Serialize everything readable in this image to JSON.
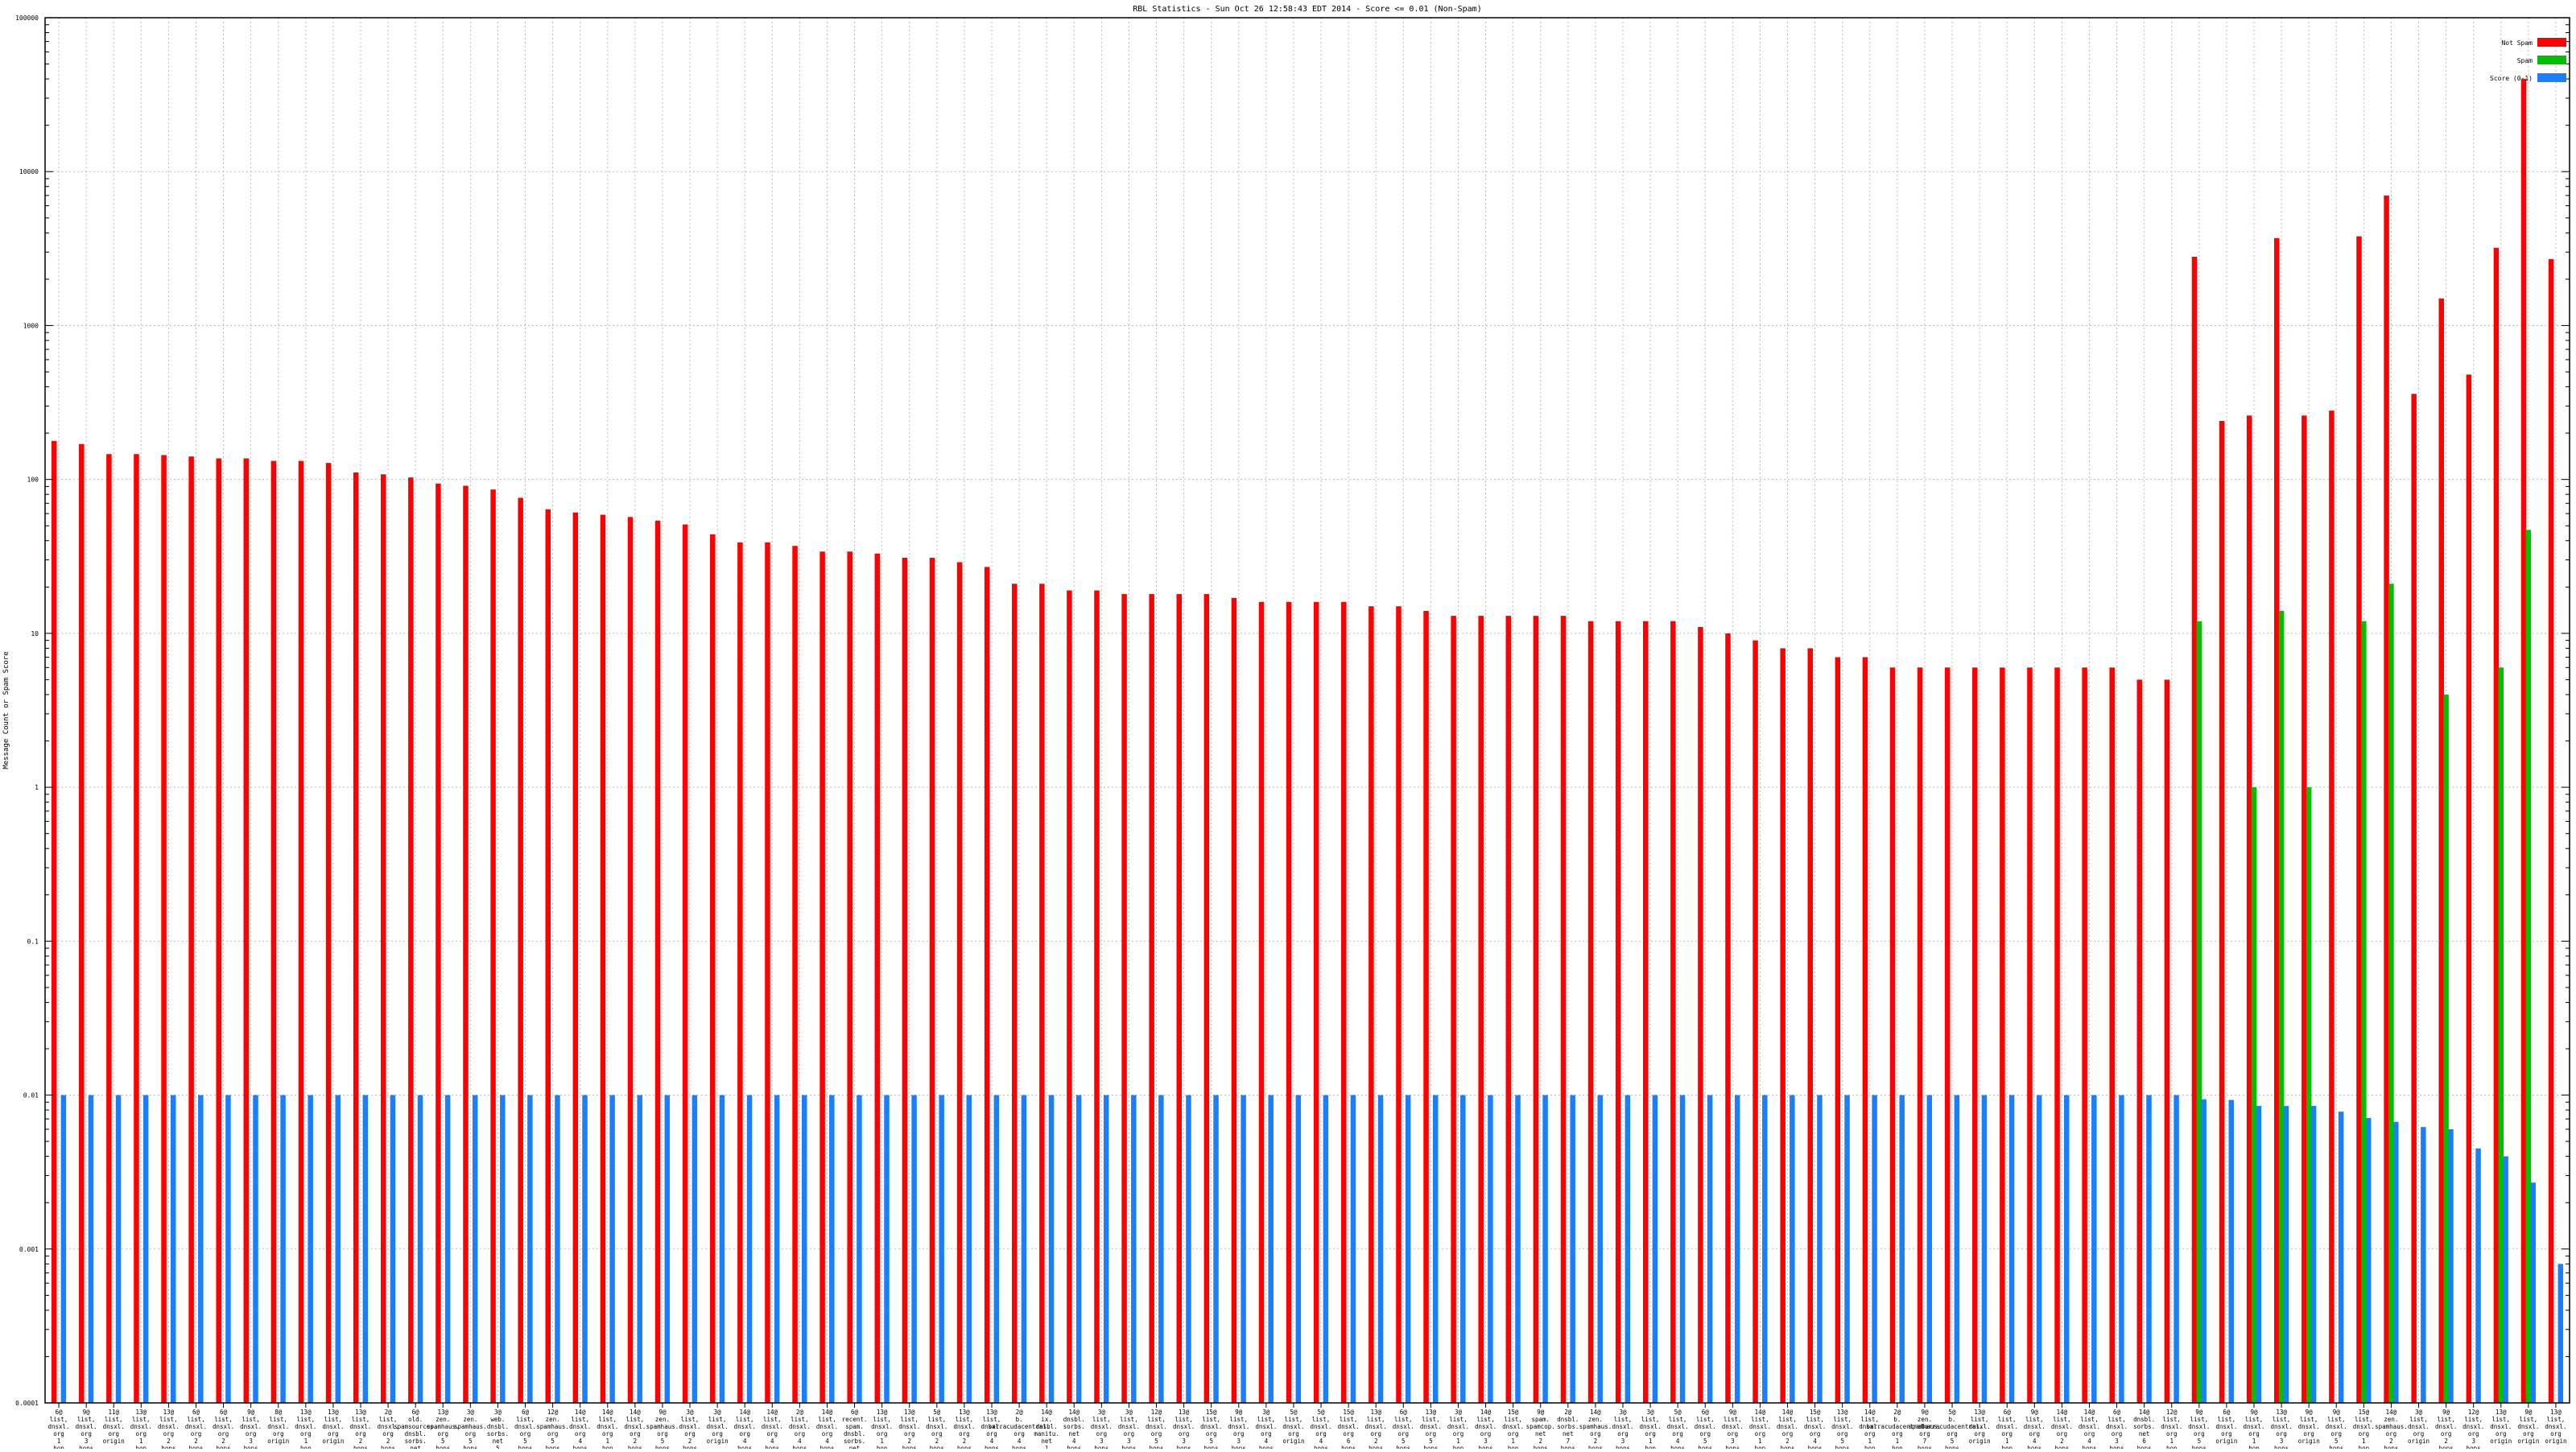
{
  "chart_data": {
    "type": "bar",
    "title": "RBL Statistics - Sun Oct 26 12:58:43 EDT 2014 - Score <= 0.01 (Non-Spam)",
    "xlabel": "",
    "ylabel": "Message Count or Spam Score",
    "yscale": "log",
    "ylim": [
      0.0001,
      100000
    ],
    "yticks": [
      "0.0001",
      "0.001",
      "0.01",
      "0.1",
      "1",
      "10",
      "100",
      "1000",
      "10000",
      "100000"
    ],
    "grid": true,
    "legend_position": "top-right",
    "series": [
      {
        "name": "Not Spam",
        "color": "#ff0000",
        "values": [
          178,
          170,
          146,
          146,
          144,
          141,
          137,
          137,
          132,
          132,
          128,
          111,
          108,
          103,
          94,
          91,
          86,
          76,
          64,
          61,
          59,
          57,
          54,
          51,
          44,
          39,
          39,
          37,
          34,
          34,
          33,
          31,
          31,
          29,
          27,
          21,
          21,
          19,
          19,
          18,
          18,
          18,
          18,
          17,
          16,
          16,
          16,
          16,
          15,
          15,
          14,
          13,
          13,
          13,
          13,
          13,
          12,
          12,
          12,
          12,
          11,
          10,
          9,
          8,
          8,
          7,
          7,
          6,
          6,
          6,
          6,
          6,
          6,
          6,
          6,
          6,
          5,
          5,
          2800,
          240,
          260,
          3700,
          260,
          280,
          3800,
          7000,
          360,
          1500,
          480,
          3200,
          40000,
          2700
        ]
      },
      {
        "name": "Spam",
        "color": "#00c000",
        "values": [
          0,
          0,
          0,
          0,
          0,
          0,
          0,
          0,
          0,
          0,
          0,
          0,
          0,
          0,
          0,
          0,
          0,
          0,
          0,
          0,
          0,
          0,
          0,
          0,
          0,
          0,
          0,
          0,
          0,
          0,
          0,
          0,
          0,
          0,
          0,
          0,
          0,
          0,
          0,
          0,
          0,
          0,
          0,
          0,
          0,
          0,
          0,
          0,
          0,
          0,
          0,
          0,
          0,
          0,
          0,
          0,
          0,
          0,
          0,
          0,
          0,
          0,
          0,
          0,
          0,
          0,
          0,
          0,
          0,
          0,
          0,
          0,
          0,
          0,
          0,
          0,
          0,
          0,
          12,
          0,
          1,
          14,
          1,
          0,
          12,
          21,
          0,
          4,
          0,
          6,
          47,
          0
        ]
      },
      {
        "name": "Score (0-1)",
        "color": "#1a7fff",
        "values": [
          0.01,
          0.01,
          0.01,
          0.01,
          0.01,
          0.01,
          0.01,
          0.01,
          0.01,
          0.01,
          0.01,
          0.01,
          0.01,
          0.01,
          0.01,
          0.01,
          0.01,
          0.01,
          0.01,
          0.01,
          0.01,
          0.01,
          0.01,
          0.01,
          0.01,
          0.01,
          0.01,
          0.01,
          0.01,
          0.01,
          0.01,
          0.01,
          0.01,
          0.01,
          0.01,
          0.01,
          0.01,
          0.01,
          0.01,
          0.01,
          0.01,
          0.01,
          0.01,
          0.01,
          0.01,
          0.01,
          0.01,
          0.01,
          0.01,
          0.01,
          0.01,
          0.01,
          0.01,
          0.01,
          0.01,
          0.01,
          0.01,
          0.01,
          0.01,
          0.01,
          0.01,
          0.01,
          0.01,
          0.01,
          0.01,
          0.01,
          0.01,
          0.01,
          0.01,
          0.01,
          0.01,
          0.01,
          0.01,
          0.01,
          0.01,
          0.01,
          0.01,
          0.01,
          0.0094,
          0.0093,
          0.0085,
          0.0085,
          0.0085,
          0.0078,
          0.0071,
          0.0067,
          0.0062,
          0.006,
          0.0045,
          0.004,
          0.0027,
          0.0008
        ]
      }
    ],
    "categories": [
      "6@ list, dnsxl. org 1 hop",
      "9@ list, dnsxl. org 3 hops",
      "11@ list, dnsxl. org origin",
      "13@ list, dnsxl. org 1 hop",
      "13@ list, dnsxl. org 2 hops",
      "6@ list, dnsxl. org 2 hops",
      "6@ list, dnsxl. org 2 hops",
      "9@ list, dnsxl. org 3 hops",
      "8@ list, dnsxl. org origin",
      "13@ list, dnsxl. org 1 hop",
      "13@ list, dnsxl. org origin",
      "13@ list, dnsxl. org 2 hops",
      "2@ list, dnsxl. org 2 hops",
      "6@ old. spamsources. dnsbl. sorbs. net 6 hops",
      "13@ zen. spamhaus. org 5 hops",
      "3@ zen. spamhaus. org 5 hops",
      "3@ web. dnsbl. sorbs. net 5 hops",
      "6@ list, dnsxl. org 5 hops",
      "12@ zen. spamhaus. org 5 hops",
      "14@ list, dnsxl. org 4 hops",
      "14@ list, dnsxl. org 1 hop",
      "14@ list, dnsxl. org 2 hops",
      "9@ zen. spamhaus. org 5 hops",
      "3@ list, dnsxl. org 2 hops",
      "3@ list, dnsxl. org origin",
      "14@ list, dnsxl. org 4 hops",
      "14@ list, dnsxl. org 4 hops",
      "2@ list, dnsxl. org 4 hops",
      "14@ list, dnsxl. org 4 hops",
      "6@ recent. spam. dnsbl. sorbs. net 6 hops",
      "13@ list, dnsxl. org 1 hop",
      "13@ list, dnsxl. org 2 hops",
      "5@ list, dnsxl. org 2 hops",
      "13@ list, dnsxl. org 2 hops",
      "13@ list, dnsxl. org 4 hops",
      "2@ b. barracudacentral. org 4 hops",
      "14@ ix. dnsbl. manitu. net 1 hop",
      "14@ dnsbl. sorbs. net 4 hops",
      "3@ list, dnsxl. org 3 hops",
      "3@ list, dnsxl. org 3 hops",
      "12@ list, dnsxl. org 5 hops",
      "13@ list, dnsxl. org 3 hops",
      "15@ list, dnsxl. org 5 hops",
      "9@ list, dnsxl. org 3 hops",
      "3@ list, dnsxl. org 4 hops",
      "5@ list, dnsxl. org origin",
      "5@ list, dnsxl. org 4 hops",
      "15@ list, dnsxl. org 6 hops",
      "13@ list, dnsxl. org 2 hops",
      "6@ list, dnsxl. org 5 hops",
      "13@ list, dnsxl. org 5 hops",
      "3@ list, dnsxl. org 1 hop",
      "14@ list, dnsxl. org 3 hops",
      "15@ list, dnsxl. org 1 hop",
      "9@ spam. spamcop. net 2 hops",
      "2@ dnsbl. sorbs. net 7 hops",
      "14@ zen. spamhaus. org 2 hops",
      "3@ list, dnsxl. org 3 hops",
      "3@ list, dnsxl. org 1 hop",
      "5@ list, dnsxl. org 4 hops",
      "6@ list, dnsxl. org 5 hops",
      "9@ list, dnsxl. org 3 hops",
      "14@ list, dnsxl. org 1 hop",
      "14@ list, dnsxl. org 2 hops",
      "15@ list, dnsxl. org 4 hops",
      "13@ list, dnsxl. org 5 hops",
      "14@ list, dnsxl. org 1 hop",
      "2@ b. barracudacentral. org 1 hop",
      "9@ zen. spamhaus. org 7 hops",
      "5@ b. barracudacentral. org 5 hops",
      "13@ list, dnsxl. org origin",
      "6@ list, dnsxl. org 1 hop",
      "9@ list, dnsxl. org 4 hops",
      "14@ list, dnsxl. org 2 hops",
      "14@ list, dnsxl. org 4 hops",
      "6@ list, dnsxl. org 3 hops",
      "14@ dnsbl. sorbs. net 6 hops",
      "12@ list, dnsxl. org 1 hop",
      "9@ list, dnsxl. org 5 hops",
      "6@ list, dnsxl. org origin",
      "9@ list, dnsxl. org 1 hop",
      "13@ list, dnsxl. org 3 hops",
      "9@ list, dnsxl. org origin",
      "9@ list, dnsxl. org 5 hops",
      "15@ list, dnsxl. org 1 hop",
      "14@ zen. spamhaus. org 2 hops",
      "3@ list, dnsxl. org origin",
      "9@ list, dnsxl. org 2 hops",
      "12@ list, dnsxl. org 3 hops",
      "13@ list, dnsxl. org origin",
      "9@ list, dnsxl. org origin",
      "13@ list, dnsxl. org origin"
    ]
  }
}
